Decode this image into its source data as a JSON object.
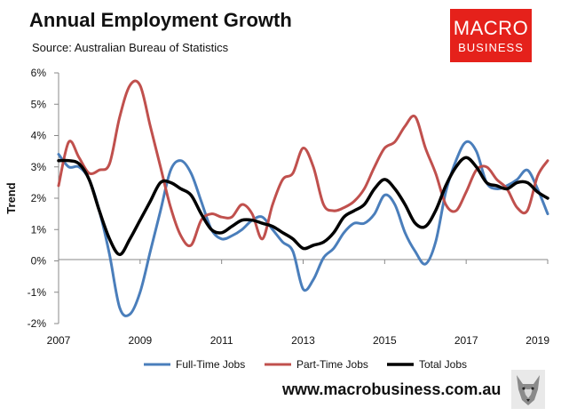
{
  "title": "Annual Employment Growth",
  "subtitle": "Source: Australian Bureau of Statistics",
  "logo": {
    "line1": "MACRO",
    "line2": "BUSINESS"
  },
  "footer": {
    "url": "www.macrobusiness.com.au"
  },
  "chart_data": {
    "type": "line",
    "title": "Annual Employment Growth",
    "xlabel": "",
    "ylabel": "Trend",
    "xlim": [
      2007,
      2019
    ],
    "ylim": [
      -2,
      6
    ],
    "x_ticks": [
      "2007",
      "2009",
      "2011",
      "2013",
      "2015",
      "2017",
      "2019"
    ],
    "x_tick_values": [
      2007,
      2009,
      2011,
      2013,
      2015,
      2017,
      2019
    ],
    "y_ticks": [
      "-2%",
      "-1%",
      "0%",
      "1%",
      "2%",
      "3%",
      "4%",
      "5%",
      "6%"
    ],
    "y_tick_values": [
      -2,
      -1,
      0,
      1,
      2,
      3,
      4,
      5,
      6
    ],
    "grid": false,
    "legend": "bottom",
    "series": [
      {
        "name": "Full-Time Jobs",
        "color": "#4a7ebb",
        "x": [
          2007.0,
          2007.25,
          2007.5,
          2007.75,
          2008.0,
          2008.25,
          2008.5,
          2008.75,
          2009.0,
          2009.25,
          2009.5,
          2009.75,
          2010.0,
          2010.25,
          2010.5,
          2010.75,
          2011.0,
          2011.25,
          2011.5,
          2011.75,
          2012.0,
          2012.25,
          2012.5,
          2012.75,
          2013.0,
          2013.25,
          2013.5,
          2013.75,
          2014.0,
          2014.25,
          2014.5,
          2014.75,
          2015.0,
          2015.25,
          2015.5,
          2015.75,
          2016.0,
          2016.25,
          2016.5,
          2016.75,
          2017.0,
          2017.25,
          2017.5,
          2017.75,
          2018.0,
          2018.25,
          2018.5,
          2018.75,
          2019.0
        ],
        "y": [
          3.4,
          3.0,
          3.0,
          2.6,
          1.6,
          0.2,
          -1.5,
          -1.7,
          -1.0,
          0.3,
          1.6,
          2.9,
          3.2,
          2.8,
          1.9,
          1.0,
          0.7,
          0.8,
          1.0,
          1.3,
          1.4,
          1.0,
          0.6,
          0.3,
          -0.9,
          -0.6,
          0.1,
          0.4,
          0.9,
          1.2,
          1.2,
          1.5,
          2.1,
          1.8,
          0.9,
          0.3,
          -0.1,
          0.6,
          2.2,
          3.2,
          3.8,
          3.5,
          2.5,
          2.3,
          2.4,
          2.6,
          2.9,
          2.3,
          1.5
        ]
      },
      {
        "name": "Part-Time Jobs",
        "color": "#c0504d",
        "x": [
          2007.0,
          2007.25,
          2007.5,
          2007.75,
          2008.0,
          2008.25,
          2008.5,
          2008.75,
          2009.0,
          2009.25,
          2009.5,
          2009.75,
          2010.0,
          2010.25,
          2010.5,
          2010.75,
          2011.0,
          2011.25,
          2011.5,
          2011.75,
          2012.0,
          2012.25,
          2012.5,
          2012.75,
          2013.0,
          2013.25,
          2013.5,
          2013.75,
          2014.0,
          2014.25,
          2014.5,
          2014.75,
          2015.0,
          2015.25,
          2015.5,
          2015.75,
          2016.0,
          2016.25,
          2016.5,
          2016.75,
          2017.0,
          2017.25,
          2017.5,
          2017.75,
          2018.0,
          2018.25,
          2018.5,
          2018.75,
          2019.0
        ],
        "y": [
          2.4,
          3.8,
          3.3,
          2.8,
          2.9,
          3.1,
          4.6,
          5.6,
          5.6,
          4.3,
          3.0,
          1.7,
          0.8,
          0.5,
          1.3,
          1.5,
          1.4,
          1.4,
          1.8,
          1.5,
          0.7,
          1.8,
          2.6,
          2.8,
          3.6,
          3.0,
          1.8,
          1.6,
          1.7,
          1.9,
          2.3,
          3.0,
          3.6,
          3.8,
          4.3,
          4.6,
          3.6,
          2.8,
          1.8,
          1.6,
          2.2,
          2.9,
          3.0,
          2.6,
          2.3,
          1.7,
          1.6,
          2.7,
          3.2
        ]
      },
      {
        "name": "Total Jobs",
        "color": "#000000",
        "x": [
          2007.0,
          2007.25,
          2007.5,
          2007.75,
          2008.0,
          2008.25,
          2008.5,
          2008.75,
          2009.0,
          2009.25,
          2009.5,
          2009.75,
          2010.0,
          2010.25,
          2010.5,
          2010.75,
          2011.0,
          2011.25,
          2011.5,
          2011.75,
          2012.0,
          2012.25,
          2012.5,
          2012.75,
          2013.0,
          2013.25,
          2013.5,
          2013.75,
          2014.0,
          2014.25,
          2014.5,
          2014.75,
          2015.0,
          2015.25,
          2015.5,
          2015.75,
          2016.0,
          2016.25,
          2016.5,
          2016.75,
          2017.0,
          2017.25,
          2017.5,
          2017.75,
          2018.0,
          2018.25,
          2018.5,
          2018.75,
          2019.0
        ],
        "y": [
          3.2,
          3.2,
          3.1,
          2.6,
          1.6,
          0.7,
          0.2,
          0.7,
          1.3,
          1.9,
          2.5,
          2.5,
          2.3,
          2.1,
          1.5,
          1.0,
          0.9,
          1.1,
          1.3,
          1.3,
          1.2,
          1.1,
          0.9,
          0.7,
          0.4,
          0.5,
          0.6,
          0.9,
          1.4,
          1.6,
          1.8,
          2.3,
          2.6,
          2.3,
          1.8,
          1.2,
          1.1,
          1.6,
          2.4,
          3.0,
          3.3,
          3.0,
          2.5,
          2.4,
          2.3,
          2.5,
          2.5,
          2.2,
          2.0
        ]
      }
    ]
  }
}
